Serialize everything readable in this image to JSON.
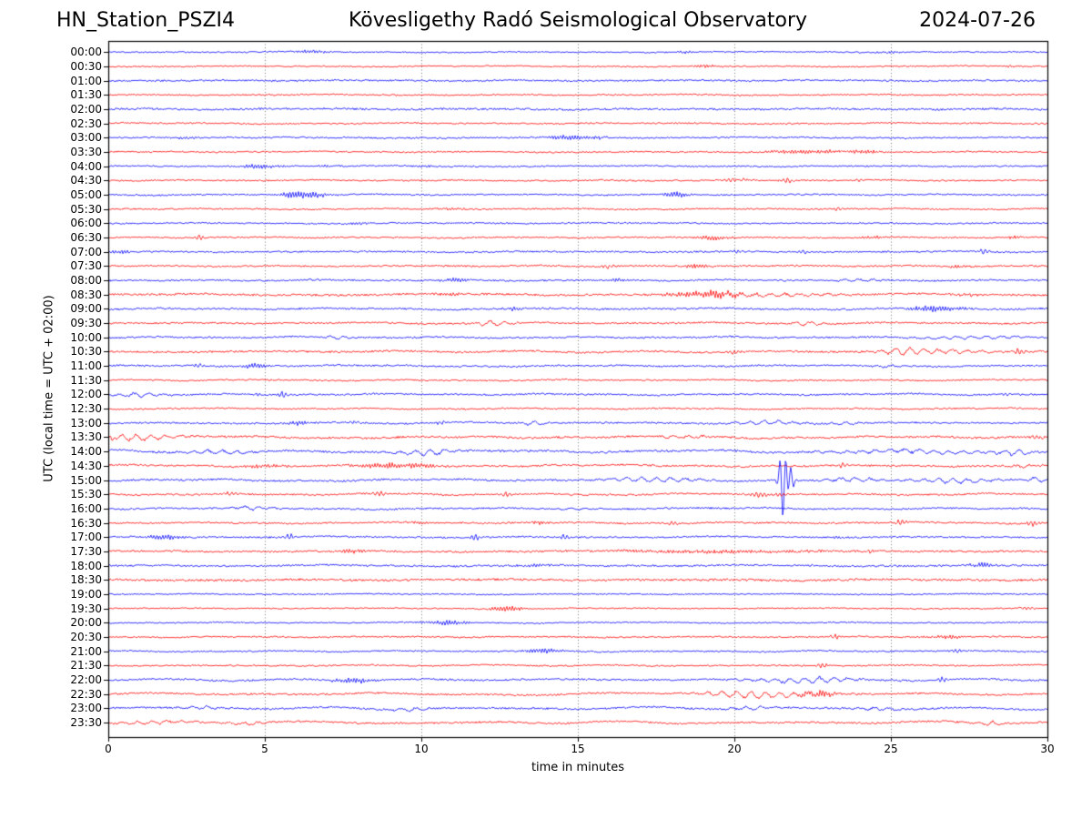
{
  "chart_data": {
    "type": "line",
    "subtype": "helicorder-day-plot",
    "title_left": "HN_Station_PSZI4",
    "title_center": "Kövesligethy Radó Seismological Observatory",
    "title_right": "2024-07-26",
    "xlabel": "time in minutes",
    "ylabel": "UTC (local time = UTC + 02:00)",
    "xlim": [
      0,
      30
    ],
    "x_ticks": [
      "0",
      "5",
      "10",
      "15",
      "20",
      "25",
      "30"
    ],
    "grid_x_dotted": [
      5,
      10,
      15,
      20,
      25
    ],
    "minutes_per_row": 30,
    "trace_colors": {
      "even_rows": "#0000ff",
      "odd_rows": "#ff0000"
    },
    "frame_color": "#000000",
    "grid_color": "#666666",
    "rows": [
      {
        "time": "00:00",
        "color": "#0000ff",
        "noise": 0.7,
        "wander": 0.3,
        "events": [
          [
            6.5,
            0.4,
            1.5,
            "d"
          ],
          [
            18.3,
            0.3,
            1.0,
            "d"
          ],
          [
            25.0,
            0.3,
            1.0,
            "d"
          ]
        ]
      },
      {
        "time": "00:30",
        "color": "#ff0000",
        "noise": 0.7,
        "wander": 0.3,
        "events": [
          [
            19.2,
            0.4,
            1.2,
            "d"
          ],
          [
            28.8,
            0.2,
            1.0,
            "d"
          ]
        ]
      },
      {
        "time": "01:00",
        "color": "#0000ff",
        "noise": 0.9,
        "wander": 0.3,
        "events": []
      },
      {
        "time": "01:30",
        "color": "#ff0000",
        "noise": 0.8,
        "wander": 0.3,
        "events": []
      },
      {
        "time": "02:00",
        "color": "#0000ff",
        "noise": 1.1,
        "wander": 0.35,
        "events": []
      },
      {
        "time": "02:30",
        "color": "#ff0000",
        "noise": 0.8,
        "wander": 0.3,
        "events": []
      },
      {
        "time": "03:00",
        "color": "#0000ff",
        "noise": 0.8,
        "wander": 0.3,
        "events": [
          [
            2.5,
            0.3,
            1.2,
            "d"
          ],
          [
            14.6,
            0.5,
            2.0,
            "d"
          ],
          [
            15.6,
            0.3,
            1.2,
            "d"
          ]
        ]
      },
      {
        "time": "03:30",
        "color": "#ff0000",
        "noise": 0.8,
        "wander": 0.3,
        "events": [
          [
            22.3,
            0.9,
            1.6,
            "d"
          ],
          [
            24.2,
            0.4,
            1.5,
            "d"
          ]
        ]
      },
      {
        "time": "04:00",
        "color": "#0000ff",
        "noise": 0.8,
        "wander": 0.3,
        "events": [
          [
            4.8,
            0.45,
            2.2,
            "d"
          ],
          [
            7.0,
            0.3,
            1.0,
            "d"
          ],
          [
            10.0,
            0.3,
            1.0,
            "d"
          ]
        ]
      },
      {
        "time": "04:30",
        "color": "#ff0000",
        "noise": 0.8,
        "wander": 0.3,
        "events": [
          [
            19.9,
            0.15,
            2.2,
            "s"
          ],
          [
            20.3,
            0.1,
            1.5,
            "s"
          ],
          [
            21.7,
            0.15,
            2.6,
            "s"
          ],
          [
            24.0,
            0.1,
            1.2,
            "s"
          ]
        ]
      },
      {
        "time": "05:00",
        "color": "#0000ff",
        "noise": 0.8,
        "wander": 0.3,
        "events": [
          [
            5.8,
            0.2,
            1.5,
            "d"
          ],
          [
            6.3,
            0.5,
            3.2,
            "d"
          ],
          [
            18.1,
            0.3,
            2.4,
            "d"
          ]
        ]
      },
      {
        "time": "05:30",
        "color": "#ff0000",
        "noise": 0.8,
        "wander": 0.3,
        "events": [
          [
            11.0,
            0.3,
            1.2,
            "d"
          ],
          [
            23.3,
            0.1,
            2.0,
            "s"
          ]
        ]
      },
      {
        "time": "06:00",
        "color": "#0000ff",
        "noise": 0.8,
        "wander": 0.3,
        "events": [
          [
            8.0,
            0.2,
            1.0,
            "d"
          ]
        ]
      },
      {
        "time": "06:30",
        "color": "#ff0000",
        "noise": 0.8,
        "wander": 0.3,
        "events": [
          [
            2.9,
            0.12,
            2.4,
            "s"
          ],
          [
            19.3,
            0.35,
            2.4,
            "d"
          ],
          [
            24.5,
            0.3,
            1.3,
            "d"
          ],
          [
            29.0,
            0.25,
            1.4,
            "d"
          ]
        ]
      },
      {
        "time": "07:00",
        "color": "#0000ff",
        "noise": 0.9,
        "wander": 0.3,
        "events": [
          [
            0.3,
            0.3,
            1.6,
            "d"
          ],
          [
            20.1,
            0.1,
            1.8,
            "s"
          ],
          [
            22.2,
            0.12,
            1.8,
            "s"
          ],
          [
            28.0,
            0.15,
            2.6,
            "s"
          ]
        ]
      },
      {
        "time": "07:30",
        "color": "#ff0000",
        "noise": 0.9,
        "wander": 0.3,
        "events": [
          [
            16.0,
            0.12,
            2.2,
            "s"
          ],
          [
            18.8,
            0.3,
            1.8,
            "d"
          ],
          [
            27.2,
            0.3,
            1.2,
            "d"
          ]
        ]
      },
      {
        "time": "08:00",
        "color": "#0000ff",
        "noise": 0.9,
        "wander": 0.35,
        "events": [
          [
            11.2,
            0.35,
            2.2,
            "d"
          ],
          [
            16.3,
            0.2,
            1.6,
            "d"
          ],
          [
            24.0,
            0.5,
            1.6,
            "w"
          ]
        ]
      },
      {
        "time": "08:30",
        "color": "#ff0000",
        "noise": 1.1,
        "wander": 0.5,
        "events": [
          [
            11.0,
            0.3,
            1.4,
            "d"
          ],
          [
            19.3,
            0.9,
            2.8,
            "d"
          ],
          [
            21.5,
            1.5,
            1.5,
            "w"
          ],
          [
            27.5,
            0.3,
            1.4,
            "d"
          ]
        ]
      },
      {
        "time": "09:00",
        "color": "#0000ff",
        "noise": 1.0,
        "wander": 0.45,
        "events": [
          [
            13.0,
            0.25,
            1.4,
            "d"
          ],
          [
            26.4,
            0.6,
            2.8,
            "d"
          ]
        ]
      },
      {
        "time": "09:30",
        "color": "#ff0000",
        "noise": 0.9,
        "wander": 0.45,
        "events": [
          [
            12.3,
            0.45,
            2.4,
            "w"
          ],
          [
            22.3,
            0.4,
            1.8,
            "w"
          ]
        ]
      },
      {
        "time": "10:00",
        "color": "#0000ff",
        "noise": 0.9,
        "wander": 0.45,
        "events": [
          [
            7.3,
            0.3,
            1.6,
            "w"
          ],
          [
            27.7,
            1.1,
            1.6,
            "w"
          ]
        ]
      },
      {
        "time": "10:30",
        "color": "#ff0000",
        "noise": 1.0,
        "wander": 0.5,
        "events": [
          [
            20.0,
            0.2,
            1.6,
            "s"
          ],
          [
            25.3,
            0.4,
            2.6,
            "w"
          ],
          [
            26.5,
            1.3,
            1.8,
            "w"
          ],
          [
            29.1,
            0.1,
            3.5,
            "s"
          ]
        ]
      },
      {
        "time": "11:00",
        "color": "#0000ff",
        "noise": 0.9,
        "wander": 0.45,
        "events": [
          [
            2.9,
            0.1,
            2.0,
            "s"
          ],
          [
            4.7,
            0.35,
            2.4,
            "d"
          ],
          [
            25.0,
            0.3,
            1.2,
            "w"
          ]
        ]
      },
      {
        "time": "11:30",
        "color": "#ff0000",
        "noise": 0.8,
        "wander": 0.35,
        "events": []
      },
      {
        "time": "12:00",
        "color": "#0000ff",
        "noise": 0.9,
        "wander": 0.5,
        "events": [
          [
            1.0,
            0.6,
            1.8,
            "w"
          ],
          [
            4.8,
            0.1,
            1.5,
            "s"
          ],
          [
            5.6,
            0.1,
            3.5,
            "s"
          ],
          [
            28.7,
            0.12,
            1.5,
            "s"
          ]
        ]
      },
      {
        "time": "12:30",
        "color": "#ff0000",
        "noise": 0.8,
        "wander": 0.35,
        "events": []
      },
      {
        "time": "13:00",
        "color": "#0000ff",
        "noise": 0.9,
        "wander": 0.5,
        "events": [
          [
            6.0,
            0.3,
            1.8,
            "d"
          ],
          [
            7.9,
            0.15,
            1.6,
            "s"
          ],
          [
            10.6,
            0.12,
            1.8,
            "s"
          ],
          [
            13.6,
            0.3,
            2.0,
            "w"
          ],
          [
            21.0,
            0.8,
            1.8,
            "w"
          ],
          [
            23.5,
            0.3,
            1.8,
            "w"
          ]
        ]
      },
      {
        "time": "13:30",
        "color": "#ff0000",
        "noise": 1.1,
        "wander": 0.7,
        "events": [
          [
            0.1,
            0.1,
            2.5,
            "s"
          ],
          [
            0.8,
            1.0,
            2.6,
            "w"
          ],
          [
            18.5,
            0.6,
            1.5,
            "w"
          ],
          [
            29.7,
            0.15,
            2.2,
            "s"
          ]
        ]
      },
      {
        "time": "14:00",
        "color": "#0000ff",
        "noise": 1.1,
        "wander": 0.9,
        "events": [
          [
            3.5,
            0.8,
            1.8,
            "w"
          ],
          [
            10.2,
            0.6,
            3.0,
            "w"
          ],
          [
            26.0,
            2.0,
            1.8,
            "w"
          ],
          [
            28.9,
            0.4,
            2.2,
            "w"
          ]
        ]
      },
      {
        "time": "14:30",
        "color": "#ff0000",
        "noise": 1.0,
        "wander": 0.6,
        "events": [
          [
            5.0,
            0.4,
            1.8,
            "d"
          ],
          [
            9.0,
            1.0,
            2.2,
            "d"
          ],
          [
            23.5,
            0.12,
            2.6,
            "s"
          ],
          [
            29.3,
            0.3,
            1.6,
            "w"
          ]
        ]
      },
      {
        "time": "15:00",
        "color": "#0000ff",
        "noise": 1.0,
        "wander": 0.7,
        "events": [
          [
            17.5,
            1.2,
            2.2,
            "w"
          ],
          [
            21.55,
            0.09,
            40,
            "q"
          ],
          [
            21.8,
            0.08,
            -14,
            "q"
          ],
          [
            23.8,
            0.6,
            2.0,
            "w"
          ],
          [
            27.0,
            1.0,
            2.2,
            "w"
          ],
          [
            29.6,
            0.25,
            2.6,
            "w"
          ]
        ]
      },
      {
        "time": "15:30",
        "color": "#ff0000",
        "noise": 0.9,
        "wander": 0.5,
        "events": [
          [
            3.9,
            0.12,
            2.0,
            "s"
          ],
          [
            8.7,
            0.15,
            2.8,
            "s"
          ],
          [
            12.7,
            0.15,
            2.4,
            "s"
          ],
          [
            20.8,
            0.18,
            2.6,
            "s"
          ],
          [
            21.4,
            0.15,
            2.2,
            "s"
          ]
        ]
      },
      {
        "time": "16:00",
        "color": "#0000ff",
        "noise": 0.9,
        "wander": 0.5,
        "events": [
          [
            4.6,
            0.3,
            2.0,
            "w"
          ],
          [
            14.8,
            0.3,
            1.4,
            "w"
          ]
        ]
      },
      {
        "time": "16:30",
        "color": "#ff0000",
        "noise": 0.9,
        "wander": 0.45,
        "events": [
          [
            10.0,
            0.2,
            1.3,
            "d"
          ],
          [
            13.8,
            0.2,
            1.3,
            "d"
          ],
          [
            18.0,
            0.12,
            2.0,
            "s"
          ],
          [
            25.3,
            0.12,
            2.8,
            "s"
          ],
          [
            29.5,
            0.12,
            2.8,
            "s"
          ]
        ]
      },
      {
        "time": "17:00",
        "color": "#0000ff",
        "noise": 0.9,
        "wander": 0.4,
        "events": [
          [
            1.8,
            0.4,
            2.2,
            "d"
          ],
          [
            5.8,
            0.1,
            3.0,
            "s"
          ],
          [
            11.7,
            0.12,
            2.4,
            "s"
          ],
          [
            14.6,
            0.12,
            2.4,
            "s"
          ],
          [
            23.3,
            0.2,
            1.2,
            "d"
          ]
        ]
      },
      {
        "time": "17:30",
        "color": "#ff0000",
        "noise": 1.0,
        "wander": 0.4,
        "events": [
          [
            7.8,
            0.3,
            1.4,
            "d"
          ],
          [
            19.5,
            3.0,
            1.2,
            "d"
          ],
          [
            24.3,
            0.15,
            1.6,
            "s"
          ]
        ]
      },
      {
        "time": "18:00",
        "color": "#0000ff",
        "noise": 1.0,
        "wander": 0.45,
        "events": [
          [
            13.5,
            0.4,
            1.3,
            "d"
          ],
          [
            27.9,
            0.3,
            2.2,
            "d"
          ]
        ]
      },
      {
        "time": "18:30",
        "color": "#ff0000",
        "noise": 1.2,
        "wander": 0.4,
        "events": []
      },
      {
        "time": "19:00",
        "color": "#0000ff",
        "noise": 0.7,
        "wander": 0.25,
        "events": []
      },
      {
        "time": "19:30",
        "color": "#ff0000",
        "noise": 0.7,
        "wander": 0.25,
        "events": [
          [
            12.7,
            0.4,
            2.8,
            "d"
          ],
          [
            29.4,
            0.15,
            1.4,
            "s"
          ]
        ]
      },
      {
        "time": "20:00",
        "color": "#0000ff",
        "noise": 0.7,
        "wander": 0.3,
        "events": [
          [
            10.8,
            0.5,
            2.2,
            "d"
          ]
        ]
      },
      {
        "time": "20:30",
        "color": "#ff0000",
        "noise": 0.8,
        "wander": 0.3,
        "events": [
          [
            23.2,
            0.12,
            2.2,
            "s"
          ],
          [
            26.8,
            0.4,
            1.5,
            "d"
          ]
        ]
      },
      {
        "time": "21:00",
        "color": "#0000ff",
        "noise": 0.8,
        "wander": 0.35,
        "events": [
          [
            13.8,
            0.4,
            2.0,
            "d"
          ],
          [
            27.1,
            0.1,
            1.8,
            "s"
          ]
        ]
      },
      {
        "time": "21:30",
        "color": "#ff0000",
        "noise": 0.8,
        "wander": 0.35,
        "events": [
          [
            22.8,
            0.12,
            3.2,
            "s"
          ]
        ]
      },
      {
        "time": "22:00",
        "color": "#0000ff",
        "noise": 1.0,
        "wander": 0.6,
        "events": [
          [
            7.8,
            0.5,
            2.4,
            "d"
          ],
          [
            22.3,
            1.2,
            2.6,
            "w"
          ],
          [
            26.6,
            0.12,
            2.2,
            "s"
          ]
        ]
      },
      {
        "time": "22:30",
        "color": "#ff0000",
        "noise": 1.0,
        "wander": 0.8,
        "events": [
          [
            20.3,
            0.8,
            2.4,
            "w"
          ],
          [
            21.5,
            1.5,
            1.8,
            "w"
          ],
          [
            22.7,
            0.4,
            3.0,
            "d"
          ]
        ]
      },
      {
        "time": "23:00",
        "color": "#0000ff",
        "noise": 1.0,
        "wander": 0.8,
        "events": [
          [
            3.0,
            0.5,
            1.6,
            "w"
          ],
          [
            9.5,
            0.5,
            1.5,
            "w"
          ],
          [
            20.5,
            0.5,
            1.6,
            "w"
          ],
          [
            24.5,
            0.5,
            1.6,
            "w"
          ]
        ]
      },
      {
        "time": "23:30",
        "color": "#ff0000",
        "noise": 1.0,
        "wander": 0.8,
        "events": [
          [
            1.5,
            0.8,
            1.6,
            "w"
          ],
          [
            4.5,
            0.5,
            1.6,
            "w"
          ],
          [
            28.2,
            0.3,
            2.0,
            "w"
          ]
        ]
      }
    ]
  }
}
